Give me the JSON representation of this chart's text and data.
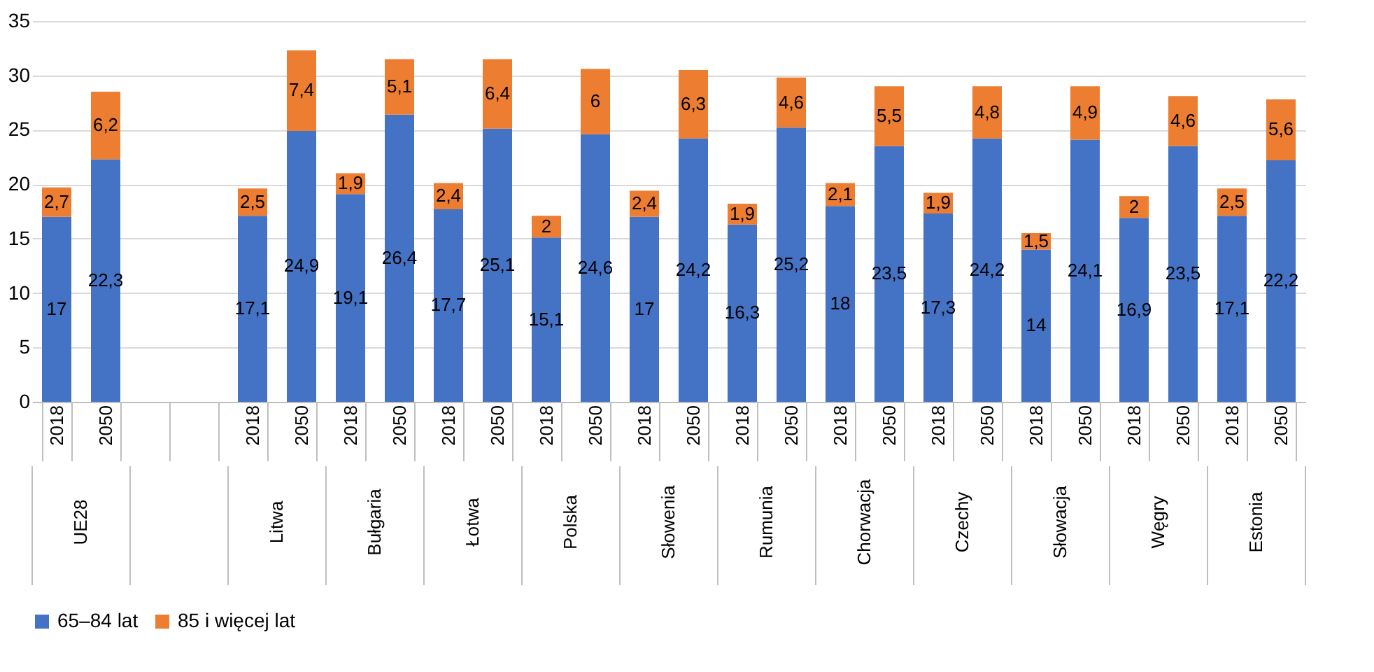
{
  "chart_data": {
    "type": "bar",
    "stacked": true,
    "categories": [
      "2018",
      "2050",
      null,
      null,
      "2018",
      "2050",
      "2018",
      "2050",
      "2018",
      "2050",
      "2018",
      "2050",
      "2018",
      "2050",
      "2018",
      "2050",
      "2018",
      "2050",
      "2018",
      "2050",
      "2018",
      "2050",
      "2018",
      "2050",
      "2018",
      "2050"
    ],
    "annotations": [
      "UE28",
      "Litwa",
      "Bułgaria",
      "Łotwa",
      "Polska",
      "Słowenia",
      "Rumunia",
      "Chorwacja",
      "Czechy",
      "Słowacja",
      "Węgry",
      "Estonia"
    ],
    "series": [
      {
        "name": "65–84 lat",
        "color": "#4472c4",
        "values": [
          17,
          22.3,
          null,
          null,
          17.1,
          24.9,
          19.1,
          26.4,
          17.7,
          25.1,
          15.1,
          24.6,
          17,
          24.2,
          16.3,
          25.2,
          18,
          23.5,
          17.3,
          24.2,
          14,
          24.1,
          16.9,
          23.5,
          17.1,
          22.2
        ],
        "value_labels": [
          "17",
          "22,3",
          null,
          null,
          "17,1",
          "24,9",
          "19,1",
          "26,4",
          "17,7",
          "25,1",
          "15,1",
          "24,6",
          "17",
          "24,2",
          "16,3",
          "25,2",
          "18",
          "23,5",
          "17,3",
          "24,2",
          "14",
          "24,1",
          "16,9",
          "23,5",
          "17,1",
          "22,2"
        ]
      },
      {
        "name": "85 i więcej lat",
        "color": "#ed7d31",
        "values": [
          2.7,
          6.2,
          null,
          null,
          2.5,
          7.4,
          1.9,
          5.1,
          2.4,
          6.4,
          2,
          6,
          2.4,
          6.3,
          1.9,
          4.6,
          2.1,
          5.5,
          1.9,
          4.8,
          1.5,
          4.9,
          2,
          4.6,
          2.5,
          5.6
        ],
        "value_labels": [
          "2,7",
          "6,2",
          null,
          null,
          "2,5",
          "7,4",
          "1,9",
          "5,1",
          "2,4",
          "6,4",
          "2",
          "6",
          "2,4",
          "6,3",
          "1,9",
          "4,6",
          "2,1",
          "5,5",
          "1,9",
          "4,8",
          "1,5",
          "4,9",
          "2",
          "4,6",
          "2,5",
          "5,6"
        ]
      }
    ],
    "ylim": [
      0,
      35
    ],
    "yticks": [
      0,
      5,
      10,
      15,
      20,
      25,
      30,
      35
    ],
    "grid": "y",
    "legend": "bottom"
  }
}
